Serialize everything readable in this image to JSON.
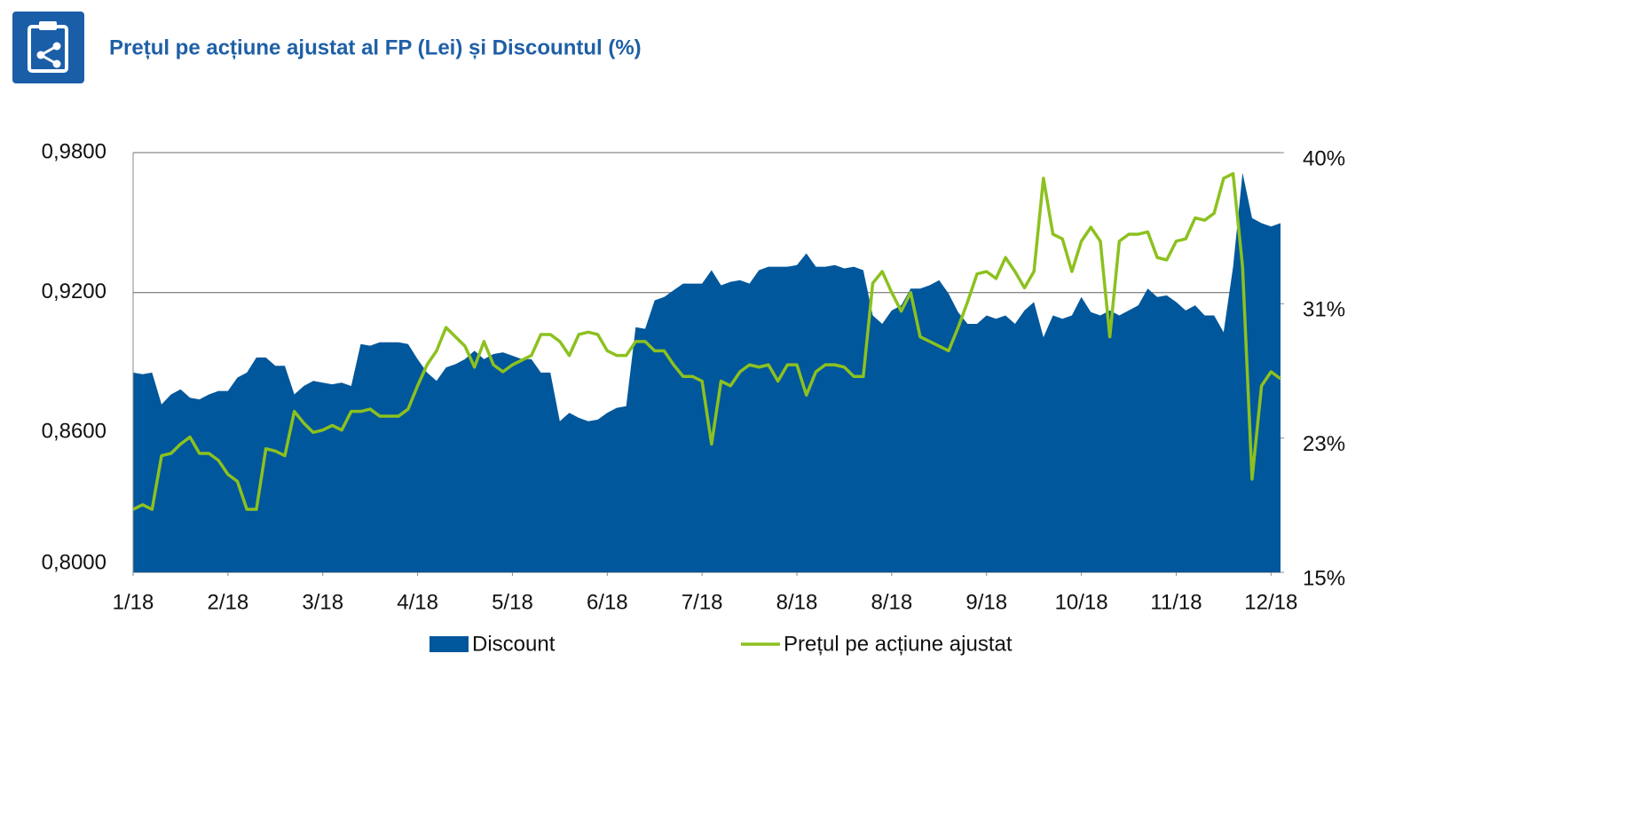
{
  "chart_data": {
    "type": "area-line",
    "title": "Prețul pe acțiune ajustat al FP (Lei) și Discountul (%)",
    "x": [
      0,
      1,
      2,
      3,
      4,
      5,
      6,
      7,
      8,
      9,
      10,
      11,
      12,
      13,
      14,
      15,
      16,
      17,
      18,
      19,
      20,
      21,
      22,
      23,
      24,
      25,
      26,
      27,
      28,
      29,
      30,
      31,
      32,
      33,
      34,
      35,
      36,
      37,
      38,
      39,
      40,
      41,
      42,
      43,
      44,
      45,
      46,
      47,
      48,
      49,
      50,
      51,
      52,
      53,
      54,
      55,
      56,
      57,
      58,
      59,
      60,
      61,
      62,
      63,
      64,
      65,
      66,
      67,
      68,
      69,
      70,
      71,
      72,
      73,
      74,
      75,
      76,
      77,
      78,
      79,
      80,
      81,
      82,
      83,
      84,
      85,
      86,
      87,
      88,
      89,
      90,
      91,
      92,
      93,
      94,
      95,
      96,
      97,
      98,
      99,
      100,
      101,
      102,
      103,
      104,
      105,
      106,
      107,
      108,
      109,
      110,
      111,
      112,
      113,
      114,
      115,
      116,
      117,
      118,
      119,
      120,
      121
    ],
    "xlim": [
      0,
      121
    ],
    "xticks": [
      {
        "value": 0,
        "label": "1/18"
      },
      {
        "value": 10,
        "label": "2/18"
      },
      {
        "value": 20,
        "label": "3/18"
      },
      {
        "value": 30,
        "label": "4/18"
      },
      {
        "value": 40,
        "label": "5/18"
      },
      {
        "value": 50,
        "label": "6/18"
      },
      {
        "value": 60,
        "label": "7/18"
      },
      {
        "value": 70,
        "label": "8/18"
      },
      {
        "value": 80,
        "label": "8/18"
      },
      {
        "value": 90,
        "label": "9/18"
      },
      {
        "value": 100,
        "label": "10/18"
      },
      {
        "value": 110,
        "label": "11/18"
      },
      {
        "value": 120,
        "label": "12/18"
      }
    ],
    "ylim": [
      0.8,
      0.98
    ],
    "yticks": [
      {
        "value": 0.8,
        "label": "0,8000"
      },
      {
        "value": 0.86,
        "label": "0,8600"
      },
      {
        "value": 0.92,
        "label": "0,9200"
      },
      {
        "value": 0.98,
        "label": "0,9800"
      }
    ],
    "y2lim": [
      15,
      40
    ],
    "y2ticks": [
      {
        "value": 15,
        "label": "15%"
      },
      {
        "value": 23,
        "label": "23%"
      },
      {
        "value": 31,
        "label": "31%"
      },
      {
        "value": 40,
        "label": "40%"
      }
    ],
    "grid": true,
    "series": [
      {
        "name": "Discount",
        "kind": "area",
        "axis": "y2",
        "color": "#00579b",
        "values": [
          26.9,
          26.8,
          26.9,
          25.0,
          25.6,
          25.9,
          25.4,
          25.3,
          25.6,
          25.8,
          25.8,
          26.6,
          26.9,
          27.8,
          27.8,
          27.3,
          27.3,
          25.6,
          26.1,
          26.4,
          26.3,
          26.2,
          26.3,
          26.1,
          28.6,
          28.5,
          28.7,
          28.7,
          28.7,
          28.6,
          27.7,
          26.9,
          26.4,
          27.2,
          27.4,
          27.7,
          28.2,
          27.7,
          28.0,
          28.1,
          27.9,
          27.7,
          27.7,
          26.9,
          26.9,
          24.0,
          24.5,
          24.2,
          24.0,
          24.1,
          24.5,
          24.8,
          24.9,
          29.6,
          29.5,
          31.2,
          31.4,
          31.8,
          32.2,
          32.2,
          32.2,
          33.0,
          32.1,
          32.3,
          32.4,
          32.2,
          33.0,
          33.2,
          33.2,
          33.2,
          33.3,
          34.0,
          33.2,
          33.2,
          33.3,
          33.1,
          33.2,
          33.0,
          30.3,
          29.8,
          30.6,
          30.9,
          31.9,
          31.9,
          32.1,
          32.4,
          31.6,
          30.5,
          29.8,
          29.8,
          30.3,
          30.1,
          30.3,
          29.8,
          30.6,
          31.1,
          29.0,
          30.3,
          30.1,
          30.3,
          31.4,
          30.5,
          30.3,
          30.6,
          30.3,
          30.6,
          30.9,
          31.9,
          31.4,
          31.5,
          31.1,
          30.6,
          30.9,
          30.3,
          30.3,
          29.3,
          33.2,
          38.8,
          36.1,
          35.8,
          35.6,
          35.8
        ]
      },
      {
        "name": "Prețul pe acțiune ajustat",
        "kind": "line",
        "axis": "y",
        "color": "#8cc11f",
        "values": [
          0.827,
          0.829,
          0.827,
          0.85,
          0.851,
          0.855,
          0.858,
          0.851,
          0.851,
          0.848,
          0.842,
          0.839,
          0.827,
          0.827,
          0.853,
          0.852,
          0.85,
          0.869,
          0.864,
          0.86,
          0.861,
          0.863,
          0.861,
          0.869,
          0.869,
          0.87,
          0.867,
          0.867,
          0.867,
          0.87,
          0.88,
          0.889,
          0.895,
          0.905,
          0.901,
          0.897,
          0.888,
          0.899,
          0.889,
          0.886,
          0.889,
          0.891,
          0.893,
          0.902,
          0.902,
          0.899,
          0.893,
          0.902,
          0.903,
          0.902,
          0.895,
          0.893,
          0.893,
          0.899,
          0.899,
          0.895,
          0.895,
          0.889,
          0.884,
          0.884,
          0.882,
          0.855,
          0.882,
          0.88,
          0.886,
          0.889,
          0.888,
          0.889,
          0.882,
          0.889,
          0.889,
          0.876,
          0.886,
          0.889,
          0.889,
          0.888,
          0.884,
          0.884,
          0.924,
          0.929,
          0.92,
          0.912,
          0.92,
          0.901,
          0.899,
          0.897,
          0.895,
          0.905,
          0.916,
          0.928,
          0.929,
          0.926,
          0.935,
          0.929,
          0.922,
          0.929,
          0.969,
          0.945,
          0.943,
          0.929,
          0.942,
          0.948,
          0.942,
          0.901,
          0.942,
          0.945,
          0.945,
          0.946,
          0.935,
          0.934,
          0.942,
          0.943,
          0.952,
          0.951,
          0.954,
          0.969,
          0.971,
          0.931,
          0.84,
          0.88,
          0.886,
          0.883
        ]
      }
    ]
  }
}
